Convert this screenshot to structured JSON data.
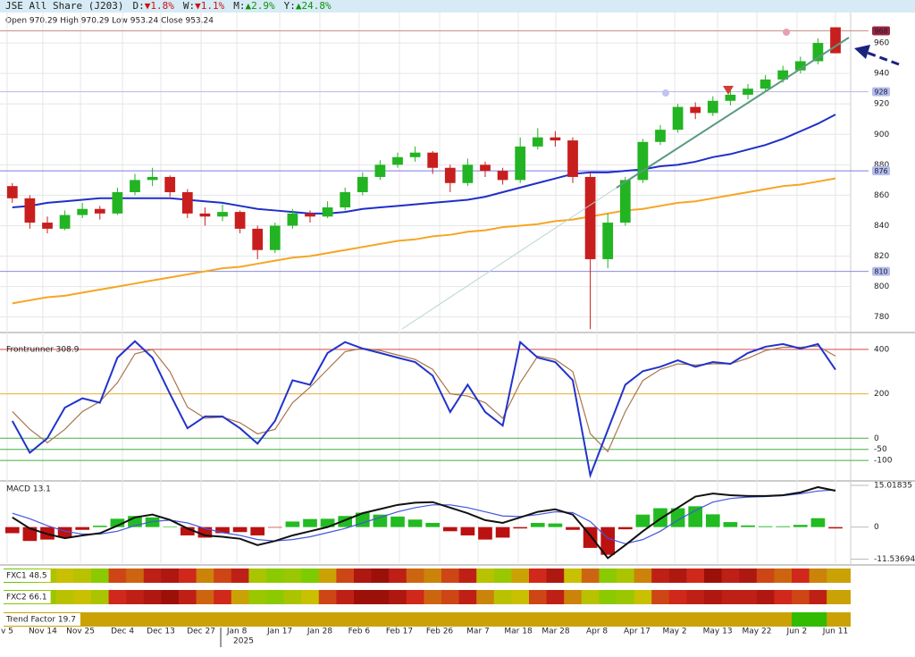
{
  "chart_data": [
    {
      "type": "candlestick",
      "title": "JSE All Share (J203)",
      "changes": [
        {
          "label": "D:",
          "value": "▼1.8%",
          "color": "#d01010"
        },
        {
          "label": "W:",
          "value": "▼1.1%",
          "color": "#d01010"
        },
        {
          "label": "M:",
          "value": "▲2.9%",
          "color": "#109010"
        },
        {
          "label": "Y:",
          "value": "▲24.8%",
          "color": "#109010"
        }
      ],
      "subtitle": "Open 970.29  High 970.29  Low 953.24  Close 953.24",
      "open": [
        866,
        858,
        842,
        838,
        847,
        851,
        848,
        862,
        870,
        872,
        862,
        848,
        846,
        849,
        838,
        824,
        840,
        848,
        846,
        852,
        862,
        872,
        880,
        885,
        888,
        878,
        868,
        880,
        876,
        870,
        892,
        898,
        896,
        872,
        818,
        842,
        870,
        895,
        903,
        918,
        914,
        922,
        926,
        930,
        936,
        942,
        948,
        970.29
      ],
      "high": [
        868,
        860,
        846,
        850,
        855,
        853,
        865,
        874,
        878,
        873,
        864,
        852,
        854,
        850,
        840,
        842,
        851,
        850,
        856,
        865,
        875,
        883,
        888,
        892,
        889,
        880,
        884,
        882,
        878,
        898,
        904,
        902,
        898,
        875,
        848,
        872,
        897,
        906,
        920,
        921,
        925,
        929,
        933,
        939,
        945,
        951,
        963,
        970.29
      ],
      "low": [
        855,
        838,
        835,
        837,
        845,
        844,
        847,
        860,
        866,
        859,
        845,
        840,
        843,
        835,
        818,
        822,
        838,
        842,
        845,
        850,
        860,
        870,
        878,
        882,
        874,
        862,
        866,
        872,
        867,
        868,
        890,
        892,
        868,
        772,
        812,
        840,
        868,
        893,
        901,
        910,
        912,
        919,
        923,
        928,
        934,
        940,
        946,
        953.24
      ],
      "close": [
        858,
        842,
        838,
        847,
        851,
        848,
        862,
        870,
        872,
        862,
        848,
        846,
        849,
        838,
        824,
        840,
        848,
        846,
        852,
        862,
        872,
        880,
        885,
        888,
        878,
        868,
        880,
        876,
        870,
        892,
        898,
        896,
        872,
        818,
        842,
        870,
        895,
        903,
        918,
        914,
        922,
        926,
        930,
        936,
        942,
        948,
        960,
        953.24
      ],
      "up_color": "#22b422",
      "down_color": "#c81e1e",
      "ma": [
        {
          "color": "#1f2fc8",
          "values": [
            852,
            853,
            855,
            856,
            857,
            858,
            858,
            858,
            858,
            858,
            857,
            856,
            855,
            853,
            851,
            850,
            849,
            848,
            848,
            849,
            851,
            852,
            853,
            854,
            855,
            856,
            857,
            859,
            862,
            865,
            868,
            871,
            874,
            875,
            875,
            876,
            877,
            879,
            880,
            882,
            885,
            887,
            890,
            893,
            897,
            902,
            907,
            913
          ]
        },
        {
          "color": "#f5a623",
          "values": [
            789,
            791,
            793,
            794,
            796,
            798,
            800,
            802,
            804,
            806,
            808,
            810,
            812,
            813,
            815,
            817,
            819,
            820,
            822,
            824,
            826,
            828,
            830,
            831,
            833,
            834,
            836,
            837,
            839,
            840,
            841,
            843,
            844,
            846,
            848,
            850,
            851,
            853,
            855,
            856,
            858,
            860,
            862,
            864,
            866,
            867,
            869,
            871
          ]
        }
      ],
      "levels": [
        {
          "value": 968,
          "color": "#c89090",
          "box": "#9a2444",
          "text_color": "#ffffff"
        },
        {
          "value": 928,
          "color": "#b8b8e8",
          "box": "#b4bcf2",
          "text_color": "#1a1a60"
        },
        {
          "value": 876,
          "color": "#7c7ce4",
          "box": "#b4bcf2",
          "text_color": "#1a1a60"
        },
        {
          "value": 810,
          "color": "#8c8ce4",
          "box": "#b4bcf2",
          "text_color": "#1a1a60"
        }
      ],
      "ylim": [
        771,
        980
      ],
      "yticks": [
        780,
        800,
        820,
        840,
        860,
        880,
        900,
        920,
        940,
        960
      ],
      "xticks": [
        {
          "value": -0.3,
          "label": "v 5"
        },
        {
          "value": 1.74,
          "label": "Nov 14"
        },
        {
          "value": 3.89,
          "label": "Nov 25"
        },
        {
          "value": 6.29,
          "label": "Dec 4"
        },
        {
          "value": 8.48,
          "label": "Dec 13"
        },
        {
          "value": 10.78,
          "label": "Dec 27"
        },
        {
          "value": 12.82,
          "label": "Jan 8"
        },
        {
          "value": 15.27,
          "label": "Jan 17"
        },
        {
          "value": 17.56,
          "label": "Jan 28"
        },
        {
          "value": 19.8,
          "label": "Feb 6"
        },
        {
          "value": 22.1,
          "label": "Feb 17"
        },
        {
          "value": 24.4,
          "label": "Feb 26"
        },
        {
          "value": 26.59,
          "label": "Mar 7"
        },
        {
          "value": 28.89,
          "label": "Mar 18"
        },
        {
          "value": 31.03,
          "label": "Mar 28"
        },
        {
          "value": 33.38,
          "label": "Apr 8"
        },
        {
          "value": 35.67,
          "label": "Apr 17"
        },
        {
          "value": 37.82,
          "label": "May 2"
        },
        {
          "value": 40.27,
          "label": "May 13"
        },
        {
          "value": 42.51,
          "label": "May 22"
        },
        {
          "value": 44.8,
          "label": "Jun 2"
        },
        {
          "value": 47.0,
          "label": "Jun 11"
        }
      ],
      "year_marker": {
        "value": 11.9,
        "label": "2025"
      },
      "grid": true
    },
    {
      "type": "line",
      "title": "Frontrunner 308.9",
      "series": [
        {
          "color": "#2233cc",
          "values": [
            78,
            -65,
            0,
            138,
            180,
            160,
            363,
            437,
            363,
            200,
            45,
            98,
            98,
            45,
            -24,
            78,
            261,
            241,
            384,
            433,
            404,
            384,
            363,
            343,
            282,
            118,
            241,
            118,
            57,
            433,
            363,
            343,
            261,
            -167,
            37,
            241,
            302,
            322,
            351,
            322,
            343,
            335,
            384,
            412,
            424,
            404,
            424,
            308.9
          ]
        },
        {
          "color": "#a8764c",
          "values": [
            120,
            40,
            -20,
            40,
            120,
            165,
            250,
            380,
            400,
            300,
            140,
            90,
            95,
            70,
            20,
            40,
            160,
            230,
            310,
            390,
            405,
            395,
            375,
            355,
            310,
            200,
            190,
            160,
            90,
            250,
            370,
            355,
            300,
            20,
            -60,
            120,
            260,
            310,
            335,
            330,
            335,
            335,
            360,
            395,
            410,
            410,
            415,
            370
          ]
        }
      ],
      "ylim": [
        -180,
        460
      ],
      "yticks": [
        400,
        200,
        0,
        -50,
        -100
      ],
      "tick_colors": [
        "#d04848",
        "#e6b030",
        "#40b040",
        "#40b040",
        "#40b040"
      ]
    },
    {
      "type": "macd",
      "title": "MACD 13.1",
      "macd": [
        3.5,
        -0.5,
        -2.5,
        -4,
        -3,
        -2.2,
        0.5,
        3.5,
        4.5,
        2.6,
        -0.5,
        -3,
        -3.5,
        -4.2,
        -6.5,
        -5,
        -3,
        -1.5,
        0,
        2.5,
        5,
        6.5,
        8,
        8.8,
        9,
        7,
        5,
        2.5,
        1.5,
        3.5,
        5.5,
        6.4,
        4.5,
        -3,
        -11.2,
        -6.5,
        -1.5,
        3,
        7,
        11,
        12.1,
        11.5,
        11.2,
        11.2,
        11.5,
        12.5,
        14.4,
        13.1
      ],
      "signal": [
        5,
        3,
        0.5,
        -1.5,
        -2.5,
        -2.5,
        -1.5,
        0.5,
        2,
        2.5,
        1.5,
        -0.5,
        -2,
        -3,
        -4.5,
        -5,
        -4.5,
        -3.5,
        -2,
        -0.5,
        1.5,
        3.5,
        5.5,
        7,
        8,
        8,
        7,
        5.5,
        4,
        3.8,
        4.5,
        5.5,
        5.2,
        2,
        -4,
        -6,
        -4.5,
        -1.5,
        2.5,
        6,
        9,
        10.3,
        10.8,
        11,
        11.3,
        12,
        13,
        13.4
      ],
      "histogram": [
        -2.2,
        -5,
        -4.5,
        -3.8,
        -1,
        0.5,
        3,
        4,
        3.5,
        0.2,
        -3,
        -3.8,
        -2.2,
        -1.8,
        -3,
        -0.2,
        2,
        2.9,
        3,
        4,
        5.2,
        4.5,
        3.8,
        2.7,
        1.5,
        -1.5,
        -3,
        -4.5,
        -3.8,
        -0.5,
        1.5,
        1.3,
        -1,
        -7.5,
        -10,
        -0.8,
        4.5,
        6.8,
        6.8,
        7.5,
        4.6,
        1.8,
        0.6,
        0.3,
        0.3,
        0.8,
        3.2,
        -0.5
      ],
      "macd_color": "#111111",
      "signal_color": "#4455dd",
      "up_color": "#22bb22",
      "down_color": "#bb1111",
      "ylim": [
        -13,
        16
      ],
      "yticks": [
        15.01835,
        0,
        -11.53694
      ]
    },
    {
      "type": "heatmap",
      "title": "FXC1 48.5",
      "values": [
        80,
        75,
        60,
        50,
        55,
        70,
        30,
        35,
        20,
        15,
        25,
        40,
        30,
        20,
        60,
        70,
        65,
        75,
        45,
        30,
        15,
        10,
        20,
        35,
        40,
        30,
        20,
        55,
        65,
        45,
        25,
        15,
        50,
        35,
        70,
        60,
        40,
        20,
        15,
        25,
        10,
        20,
        15,
        30,
        35,
        25,
        40,
        45
      ],
      "colorscale": [
        [
          0,
          "#7a0000"
        ],
        [
          25,
          "#d0281a"
        ],
        [
          50,
          "#c8c000"
        ],
        [
          75,
          "#7ccc00"
        ],
        [
          100,
          "#00b000"
        ]
      ]
    },
    {
      "type": "heatmap",
      "title": "FXC2 66.1",
      "values": [
        75,
        70,
        65,
        55,
        50,
        60,
        25,
        20,
        15,
        10,
        20,
        35,
        25,
        45,
        65,
        70,
        60,
        50,
        30,
        20,
        10,
        10,
        15,
        25,
        35,
        30,
        20,
        40,
        55,
        50,
        30,
        20,
        40,
        55,
        70,
        65,
        50,
        30,
        25,
        20,
        15,
        20,
        20,
        15,
        25,
        30,
        20,
        45
      ],
      "colorscale": [
        [
          0,
          "#7a0000"
        ],
        [
          25,
          "#d0281a"
        ],
        [
          50,
          "#c8c000"
        ],
        [
          75,
          "#7ccc00"
        ],
        [
          100,
          "#00b000"
        ]
      ]
    },
    {
      "type": "heatmap",
      "title": "Trend Factor 19.7",
      "values": [
        45,
        45,
        45,
        45,
        45,
        45,
        45,
        45,
        45,
        45,
        45,
        45,
        45,
        45,
        45,
        45,
        45,
        45,
        45,
        45,
        45,
        45,
        45,
        45,
        45,
        45,
        45,
        45,
        45,
        45,
        45,
        45,
        45,
        45,
        45,
        45,
        45,
        45,
        45,
        45,
        45,
        45,
        45,
        45,
        45,
        90,
        90,
        45
      ],
      "colorscale": [
        [
          0,
          "#7a0000"
        ],
        [
          25,
          "#d0281a"
        ],
        [
          50,
          "#c8c000"
        ],
        [
          75,
          "#7ccc00"
        ],
        [
          100,
          "#00b000"
        ]
      ]
    }
  ]
}
